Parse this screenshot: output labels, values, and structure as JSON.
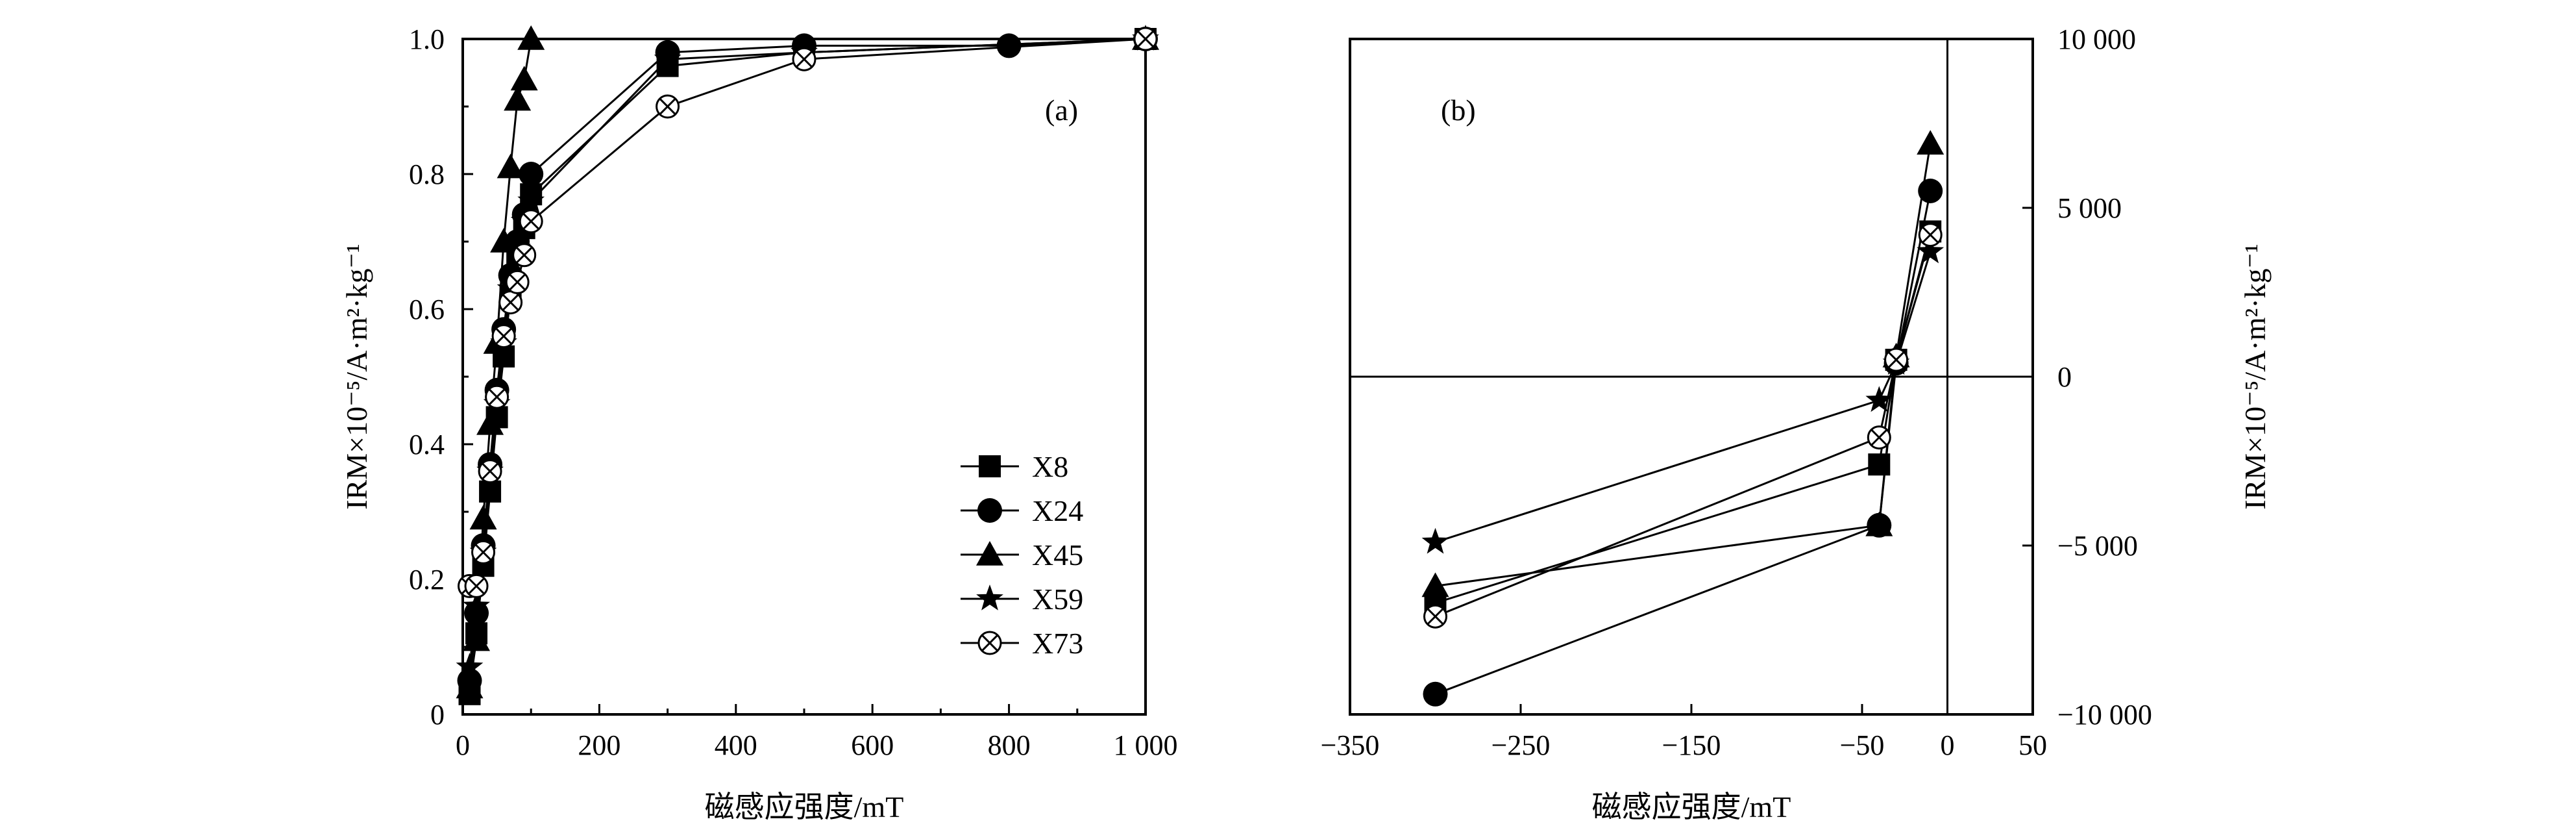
{
  "chart_data": [
    {
      "type": "line",
      "panel_label": "(a)",
      "xlabel": "磁感应强度/mT",
      "ylabel": "IRM×10⁻⁵/A·m²·kg⁻¹",
      "xlim": [
        0,
        1000
      ],
      "ylim": [
        0,
        1.0
      ],
      "x_ticks": [
        {
          "value": 0,
          "label": "0"
        },
        {
          "value": 200,
          "label": "200"
        },
        {
          "value": 400,
          "label": "400"
        },
        {
          "value": 600,
          "label": "600"
        },
        {
          "value": 800,
          "label": "800"
        },
        {
          "value": 1000,
          "label": "1 000"
        }
      ],
      "y_ticks": [
        {
          "value": 0,
          "label": "0"
        },
        {
          "value": 0.2,
          "label": "0.2"
        },
        {
          "value": 0.4,
          "label": "0.4"
        },
        {
          "value": 0.6,
          "label": "0.6"
        },
        {
          "value": 0.8,
          "label": "0.8"
        },
        {
          "value": 1.0,
          "label": "1.0"
        }
      ],
      "legend_position": "bottom-right",
      "grid": false,
      "series": [
        {
          "name": "X8",
          "marker": "square",
          "x": [
            10,
            20,
            30,
            40,
            50,
            60,
            70,
            80,
            90,
            100,
            300,
            500,
            1000
          ],
          "y": [
            0.03,
            0.12,
            0.22,
            0.33,
            0.44,
            0.53,
            0.62,
            0.68,
            0.72,
            0.77,
            0.96,
            0.98,
            1.0
          ]
        },
        {
          "name": "X24",
          "marker": "circle",
          "x": [
            10,
            20,
            30,
            40,
            50,
            60,
            70,
            80,
            90,
            100,
            300,
            500,
            800,
            1000
          ],
          "y": [
            0.05,
            0.15,
            0.25,
            0.37,
            0.48,
            0.57,
            0.65,
            0.7,
            0.74,
            0.8,
            0.98,
            0.99,
            0.99,
            1.0
          ]
        },
        {
          "name": "X45",
          "marker": "triangle",
          "x": [
            10,
            20,
            30,
            40,
            50,
            60,
            70,
            80,
            90,
            100,
            1000
          ],
          "y": [
            0.04,
            0.11,
            0.29,
            0.43,
            0.55,
            0.7,
            0.81,
            0.91,
            0.94,
            1.0,
            1.0
          ]
        },
        {
          "name": "X59",
          "marker": "star",
          "x": [
            10,
            20,
            30,
            40,
            50,
            60,
            70,
            80,
            90,
            100,
            300,
            500,
            1000
          ],
          "y": [
            0.07,
            0.16,
            0.24,
            0.36,
            0.46,
            0.55,
            0.63,
            0.69,
            0.73,
            0.76,
            0.97,
            0.98,
            1.0
          ]
        },
        {
          "name": "X73",
          "marker": "circle-x",
          "x": [
            10,
            20,
            30,
            40,
            50,
            60,
            70,
            80,
            90,
            100,
            300,
            500,
            1000
          ],
          "y": [
            0.19,
            0.19,
            0.24,
            0.36,
            0.47,
            0.56,
            0.61,
            0.64,
            0.68,
            0.73,
            0.9,
            0.97,
            1.0
          ]
        }
      ]
    },
    {
      "type": "line",
      "panel_label": "(b)",
      "xlabel": "磁感应强度/mT",
      "ylabel": "IRM×10⁻⁵/A·m²·kg⁻¹",
      "xlim": [
        -350,
        50
      ],
      "ylim": [
        -10000,
        10000
      ],
      "x_ticks": [
        {
          "value": -350,
          "label": "−350"
        },
        {
          "value": -250,
          "label": "−250"
        },
        {
          "value": -150,
          "label": "−150"
        },
        {
          "value": -50,
          "label": "−50"
        },
        {
          "value": 0,
          "label": "0"
        },
        {
          "value": 50,
          "label": "50"
        }
      ],
      "y_ticks": [
        {
          "value": -10000,
          "label": "−10 000"
        },
        {
          "value": -5000,
          "label": "−5 000"
        },
        {
          "value": 0,
          "label": "0"
        },
        {
          "value": 5000,
          "label": "5 000"
        },
        {
          "value": 10000,
          "label": "10 000"
        }
      ],
      "y_axis_side": "right",
      "zero_lines": true,
      "grid": false,
      "series": [
        {
          "name": "X8",
          "marker": "square",
          "x": [
            -300,
            -40,
            -30,
            -10
          ],
          "y": [
            -6700,
            -2600,
            500,
            4300
          ]
        },
        {
          "name": "X24",
          "marker": "circle",
          "x": [
            -300,
            -40,
            -30,
            -10
          ],
          "y": [
            -9400,
            -4400,
            400,
            5500
          ]
        },
        {
          "name": "X45",
          "marker": "triangle",
          "x": [
            -300,
            -40,
            -30,
            -10
          ],
          "y": [
            -6200,
            -4400,
            600,
            6900
          ]
        },
        {
          "name": "X59",
          "marker": "star",
          "x": [
            -300,
            -40,
            -30,
            -10
          ],
          "y": [
            -4900,
            -700,
            400,
            3700
          ]
        },
        {
          "name": "X73",
          "marker": "circle-x",
          "x": [
            -300,
            -40,
            -30,
            -10
          ],
          "y": [
            -7100,
            -1800,
            500,
            4200
          ]
        }
      ]
    }
  ]
}
